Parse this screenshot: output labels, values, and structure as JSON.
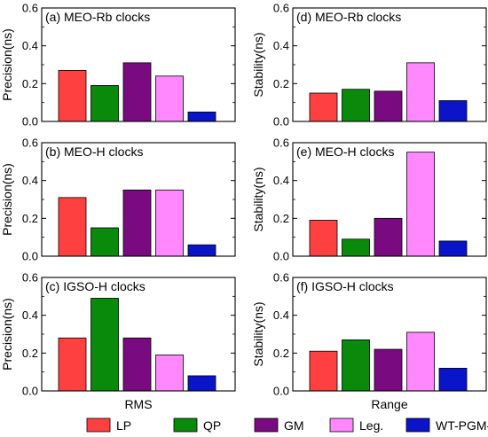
{
  "chart_data": [
    {
      "type": "bar",
      "title": "(a) MEO-Rb clocks",
      "ylabel": "Precision(ns)",
      "xlabel": "",
      "ylim": [
        0,
        0.6
      ],
      "yticks": [
        "0.0",
        "0.2",
        "0.4",
        "0.6"
      ],
      "categories": [
        "LP",
        "QP",
        "GM",
        "Leg.",
        "WT-PGM-FWL"
      ],
      "values": [
        0.27,
        0.19,
        0.31,
        0.24,
        0.05
      ]
    },
    {
      "type": "bar",
      "title": "(b) MEO-H clocks",
      "ylabel": "Precision(ns)",
      "xlabel": "",
      "ylim": [
        0,
        0.6
      ],
      "yticks": [
        "0.0",
        "0.2",
        "0.4",
        "0.6"
      ],
      "categories": [
        "LP",
        "QP",
        "GM",
        "Leg.",
        "WT-PGM-FWL"
      ],
      "values": [
        0.31,
        0.15,
        0.35,
        0.35,
        0.06
      ]
    },
    {
      "type": "bar",
      "title": "(c) IGSO-H clocks",
      "ylabel": "Precision(ns)",
      "xlabel": "RMS",
      "ylim": [
        0,
        0.6
      ],
      "yticks": [
        "0.0",
        "0.2",
        "0.4",
        "0.6"
      ],
      "categories": [
        "LP",
        "QP",
        "GM",
        "Leg.",
        "WT-PGM-FWL"
      ],
      "values": [
        0.28,
        0.49,
        0.28,
        0.19,
        0.08
      ]
    },
    {
      "type": "bar",
      "title": "(d) MEO-Rb clocks",
      "ylabel": "Stability(ns)",
      "xlabel": "",
      "ylim": [
        0,
        0.6
      ],
      "yticks": [
        "0.0",
        "0.2",
        "0.4",
        "0.6"
      ],
      "categories": [
        "LP",
        "QP",
        "GM",
        "Leg.",
        "WT-PGM-FWL"
      ],
      "values": [
        0.15,
        0.17,
        0.16,
        0.31,
        0.11
      ]
    },
    {
      "type": "bar",
      "title": "(e) MEO-H clocks",
      "ylabel": "Stability(ns)",
      "xlabel": "",
      "ylim": [
        0,
        0.6
      ],
      "yticks": [
        "0.0",
        "0.2",
        "0.4",
        "0.6"
      ],
      "categories": [
        "LP",
        "QP",
        "GM",
        "Leg.",
        "WT-PGM-FWL"
      ],
      "values": [
        0.19,
        0.09,
        0.2,
        0.55,
        0.08
      ]
    },
    {
      "type": "bar",
      "title": "(f) IGSO-H clocks",
      "ylabel": "Stability(ns)",
      "xlabel": "Range",
      "ylim": [
        0,
        0.6
      ],
      "yticks": [
        "0.0",
        "0.2",
        "0.4",
        "0.6"
      ],
      "categories": [
        "LP",
        "QP",
        "GM",
        "Leg.",
        "WT-PGM-FWL"
      ],
      "values": [
        0.21,
        0.27,
        0.22,
        0.31,
        0.12
      ]
    }
  ],
  "legend": {
    "placement": "bottom",
    "items": [
      {
        "label": "LP",
        "color": "#ff4040"
      },
      {
        "label": "QP",
        "color": "#0a8a0a"
      },
      {
        "label": "GM",
        "color": "#7a0a80"
      },
      {
        "label": "Leg.",
        "color": "#ff88ff"
      },
      {
        "label": "WT-PGM-FWL",
        "color": "#0a14c8"
      }
    ]
  },
  "colors": {
    "LP": "#ff4040",
    "QP": "#0a8a0a",
    "GM": "#7a0a80",
    "Leg.": "#ff88ff",
    "WT-PGM-FWL": "#0a14c8"
  }
}
